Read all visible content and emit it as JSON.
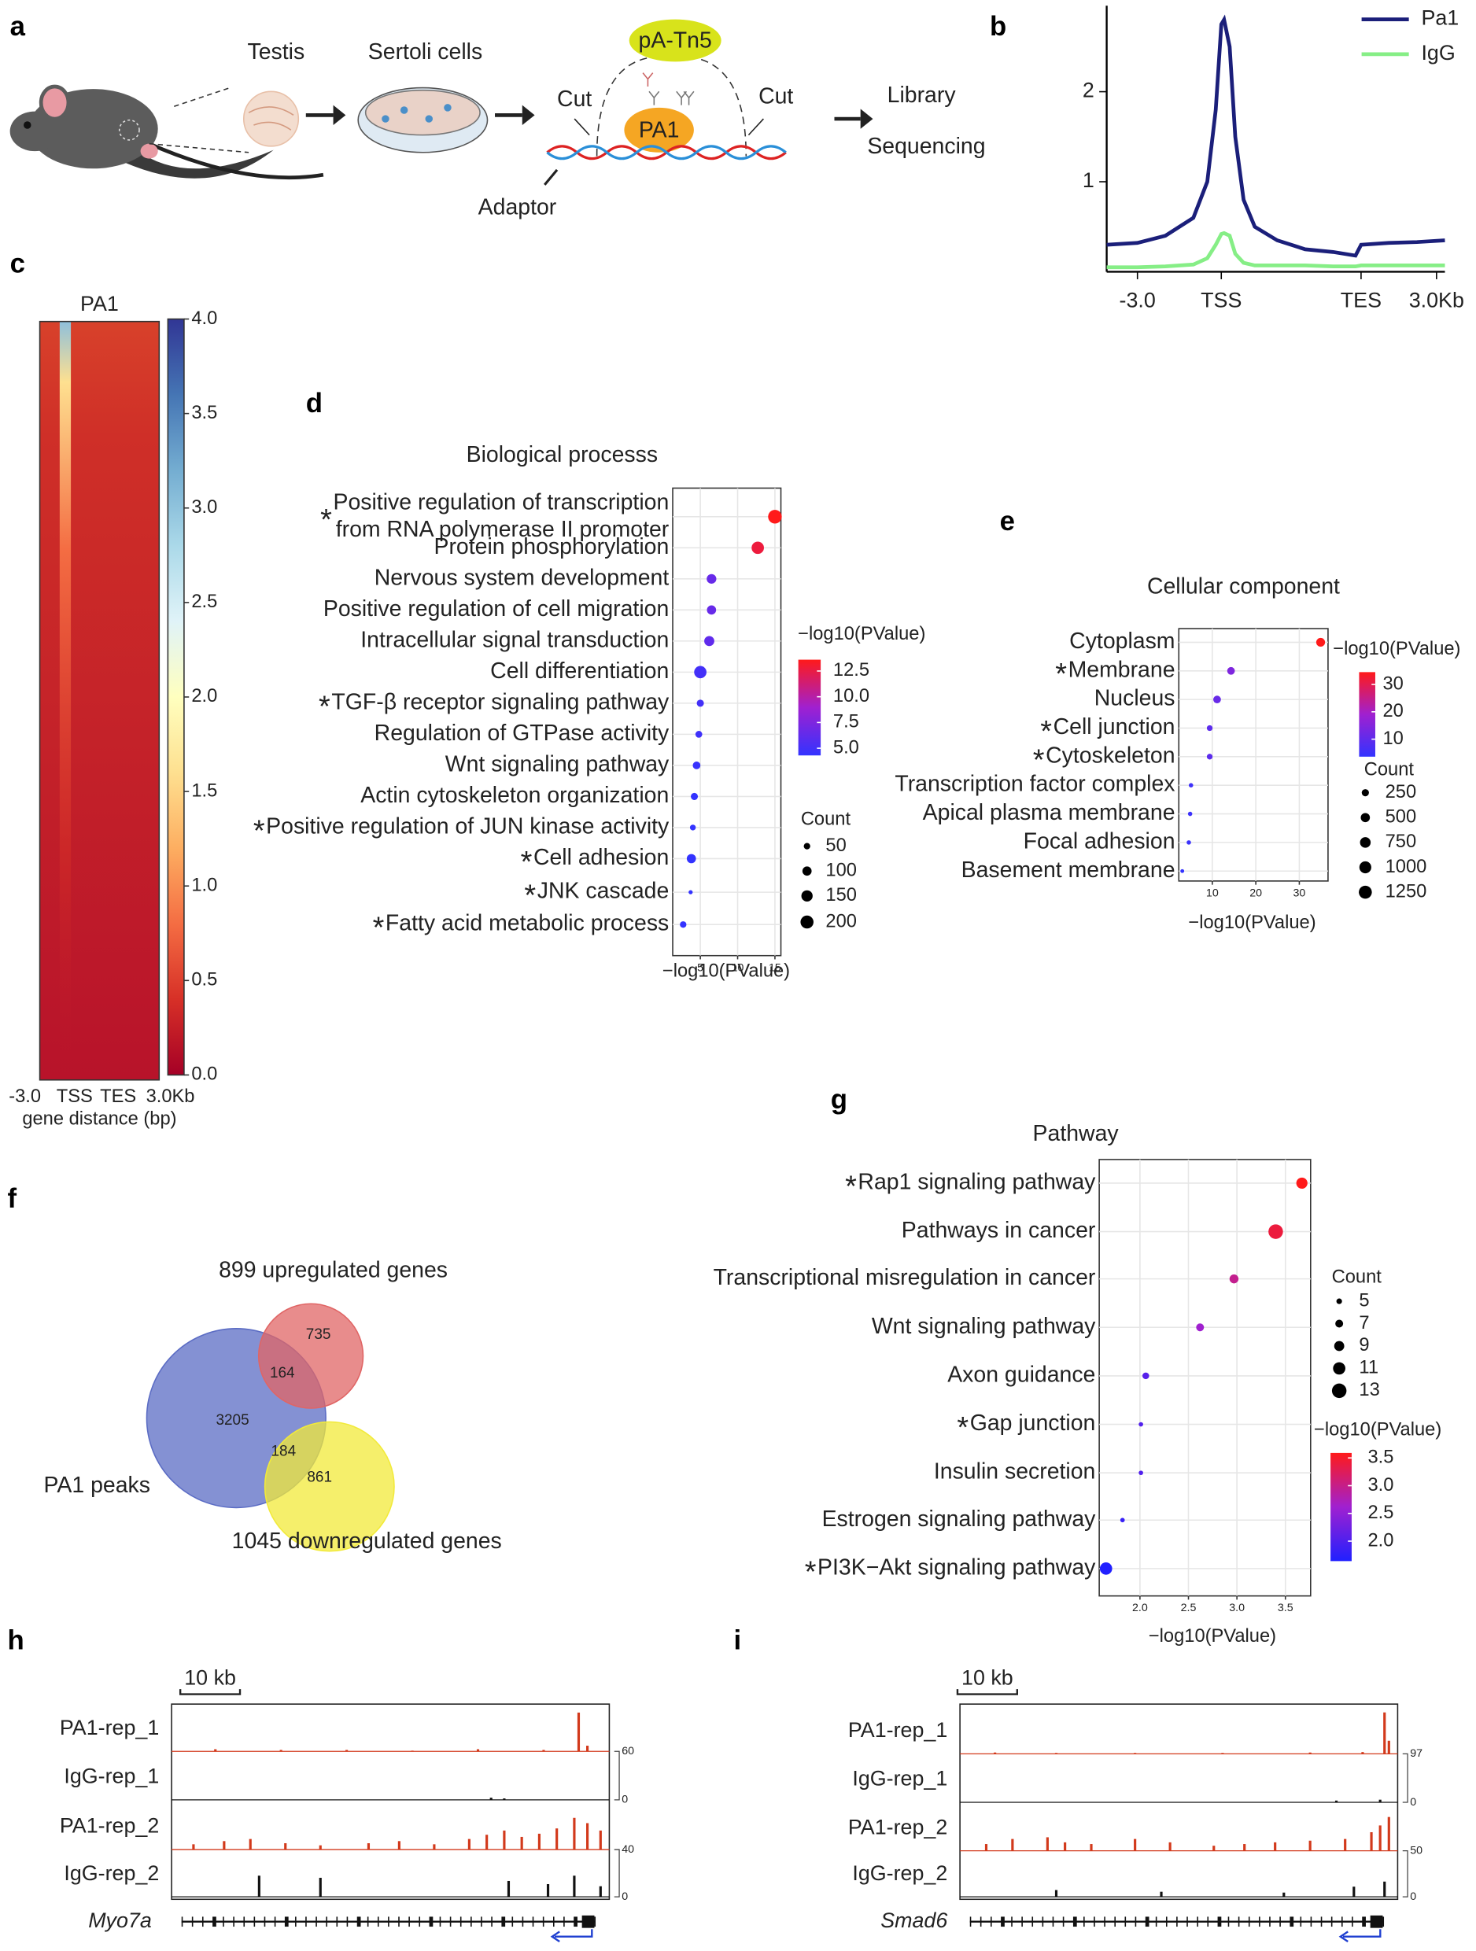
{
  "panel_labels": [
    "a",
    "b",
    "c",
    "d",
    "e",
    "f",
    "g",
    "h",
    "i"
  ],
  "workflow": {
    "testis": "Testis",
    "sertoli": "Sertoli cells",
    "enzyme": "pA-Tn5",
    "cut_left": "Cut",
    "cut_right": "Cut",
    "protein": "PA1",
    "library": "Library",
    "sequencing": "Sequencing",
    "adaptor": "Adaptor"
  },
  "chart_data": [
    {
      "type": "line",
      "x": [
        -11,
        0,
        10,
        20,
        25,
        28,
        30,
        31,
        33,
        35,
        38,
        42,
        50,
        60,
        70,
        78,
        80,
        90,
        100,
        110
      ],
      "series": [
        {
          "name": "Pa1",
          "color": "#1b1f7a",
          "values": [
            0.3,
            0.32,
            0.4,
            0.6,
            1.0,
            1.8,
            2.75,
            2.8,
            2.5,
            1.5,
            0.8,
            0.5,
            0.35,
            0.25,
            0.22,
            0.18,
            0.3,
            0.32,
            0.33,
            0.35
          ]
        },
        {
          "name": "IgG",
          "color": "#86ee86",
          "values": [
            0.05,
            0.05,
            0.06,
            0.08,
            0.15,
            0.3,
            0.42,
            0.43,
            0.4,
            0.2,
            0.1,
            0.07,
            0.07,
            0.07,
            0.06,
            0.06,
            0.07,
            0.07,
            0.07,
            0.07
          ]
        }
      ],
      "xlim": [
        -11,
        110
      ],
      "xticks": [
        {
          "value": 0,
          "label": "-3.0"
        },
        {
          "value": 30,
          "label": "TSS"
        },
        {
          "value": 80,
          "label": "TES"
        },
        {
          "value": 107,
          "label": "3.0Kb"
        }
      ],
      "ylim": [
        0,
        2.9
      ],
      "yticks": [
        1,
        2
      ],
      "legend": "upper right"
    },
    {
      "type": "heatmap",
      "title": "PA1",
      "categories": [
        "-3.0",
        "TSS",
        "TES",
        "3.0Kb"
      ],
      "xlabel": "gene distance (bp)",
      "clim": [
        0,
        4
      ],
      "cticks": [
        {
          "value": 0,
          "label": "0.0"
        },
        0.5,
        {
          "value": 1,
          "label": "1.0"
        },
        1.5,
        {
          "value": 2,
          "label": "2.0"
        },
        2.5,
        {
          "value": 3,
          "label": "3.0"
        },
        3.5,
        {
          "value": 4,
          "label": "4.0"
        }
      ],
      "colors": [
        "#a50026",
        "#d73027",
        "#f46d43",
        "#fdae61",
        "#fee090",
        "#ffffbf",
        "#e0f3f8",
        "#abd9e9",
        "#74add1",
        "#4575b4",
        "#313695"
      ]
    },
    {
      "type": "dot",
      "title": "Biological processs",
      "categories": [
        "Positive regulation of transcription\nfrom RNA polymerase II promoter",
        "Protein phosphorylation",
        "Nervous system development",
        "Positive regulation of cell migration",
        "Intracellular signal transduction",
        "Cell differentiation",
        "TGF-β receptor signaling pathway",
        "Regulation of GTPase activity",
        "Wnt signaling pathway",
        "Actin cytoskeleton organization",
        "Positive regulation of JUN kinase activity",
        "Cell adhesion",
        "JNK cascade",
        "Fatty acid metabolic process"
      ],
      "values": [
        15,
        12.7,
        6.5,
        6.5,
        6.2,
        5,
        5,
        4.8,
        4.5,
        4.2,
        4,
        3.8,
        3.7,
        2.7
      ],
      "sizes": [
        220,
        180,
        110,
        100,
        120,
        180,
        60,
        55,
        70,
        60,
        40,
        100,
        20,
        50
      ],
      "starred": [
        true,
        false,
        false,
        false,
        false,
        false,
        true,
        false,
        false,
        false,
        true,
        true,
        true,
        true
      ],
      "star": "*",
      "xlim": [
        1.3,
        15.8
      ],
      "xticks": [
        5,
        10,
        15
      ],
      "xlabel": "−log10(PValue)",
      "grid": true,
      "color_title": "−log10(PValue)",
      "clim": [
        4.3,
        13.6
      ],
      "cticks": [
        {
          "value": 5,
          "label": "5.0"
        },
        7.5,
        {
          "value": 10,
          "label": "10.0"
        },
        12.5
      ],
      "colors": [
        "#3333ff",
        "#a020d0",
        "#ff1a1a"
      ],
      "size_title": "Count",
      "size_legend": [
        50,
        100,
        150,
        200
      ]
    },
    {
      "type": "dot",
      "title": "Cellular component",
      "categories": [
        "Cytoplasm",
        "Membrane",
        "Nucleus",
        "Cell junction",
        "Cytoskeleton",
        "Transcription factor complex",
        "Apical plasma membrane",
        "Focal adhesion",
        "Basement membrane"
      ],
      "values": [
        34.9,
        14.3,
        11.1,
        9.4,
        9.4,
        5.1,
        4.9,
        4.6,
        3.1
      ],
      "sizes": [
        450,
        300,
        300,
        120,
        120,
        40,
        40,
        40,
        20
      ],
      "starred": [
        false,
        true,
        false,
        true,
        true,
        false,
        false,
        false,
        false
      ],
      "star": "*",
      "xlim": [
        2.3,
        36.6
      ],
      "xticks": [
        10,
        20,
        30
      ],
      "xlabel": "−log10(PValue)",
      "grid": true,
      "color_title": "−log10(PValue)",
      "clim": [
        3.6,
        34.5
      ],
      "cticks": [
        10,
        20,
        30
      ],
      "colors": [
        "#3333ff",
        "#a020d0",
        "#ff1a1a"
      ],
      "size_title": "Count",
      "size_legend": [
        250,
        500,
        750,
        1000,
        1250
      ]
    },
    {
      "type": "venn",
      "sets": [
        {
          "name": "PA1 peaks",
          "color": "#5b6cc4"
        },
        {
          "name": "899 upregulated genes",
          "color": "#e06565"
        },
        {
          "name": "1045 downregulated genes",
          "color": "#f2ea3a"
        }
      ],
      "values": [
        3205,
        164,
        735,
        184,
        861
      ]
    },
    {
      "type": "dot",
      "title": "Pathway",
      "categories": [
        "Rap1 signaling pathway",
        "Pathways in cancer",
        "Transcriptional misregulation in cancer",
        "Wnt signaling pathway",
        "Axon guidance",
        "Gap junction",
        "Insulin secretion",
        "Estrogen signaling pathway",
        "PI3K−Akt signaling pathway"
      ],
      "values": [
        3.67,
        3.4,
        2.97,
        2.62,
        2.06,
        2.01,
        2.01,
        1.82,
        1.65
      ],
      "sizes": [
        10,
        13,
        8,
        7,
        6,
        4,
        4,
        4,
        11
      ],
      "starred": [
        true,
        false,
        false,
        false,
        false,
        true,
        false,
        false,
        true
      ],
      "star": "*",
      "xlim": [
        1.58,
        3.76
      ],
      "xticks": [
        {
          "value": 2,
          "label": "2.0"
        },
        2.5,
        {
          "value": 3,
          "label": "3.0"
        },
        3.5
      ],
      "xlabel": "−log10(PValue)",
      "grid": true,
      "color_title": "−log10(PValue)",
      "clim": [
        1.64,
        3.59
      ],
      "cticks": [
        {
          "value": 2,
          "label": "2.0"
        },
        2.5,
        {
          "value": 3,
          "label": "3.0"
        },
        3.5
      ],
      "colors": [
        "#2020ff",
        "#a020d0",
        "#ff1a1a"
      ],
      "size_title": "Count",
      "size_legend": [
        5,
        7,
        9,
        11,
        13
      ]
    },
    {
      "type": "tracks",
      "scale_label": "10 kb",
      "gene": "Myo7a",
      "scales": [
        {
          "ylim": [
            0,
            60
          ]
        },
        {
          "ylim": [
            0,
            40
          ]
        }
      ],
      "tracks": [
        {
          "name": "PA1-rep_1",
          "color": "#d2391b",
          "scale": 0,
          "x": [
            10,
            25,
            40,
            55,
            70,
            85,
            93,
            95
          ],
          "values": [
            3,
            2,
            2,
            1,
            3,
            2,
            55,
            8
          ]
        },
        {
          "name": "IgG-rep_1",
          "color": "#111111",
          "scale": 0,
          "x": [
            73,
            76
          ],
          "values": [
            3,
            2
          ]
        },
        {
          "name": "PA1-rep_2",
          "color": "#d2391b",
          "scale": 1,
          "x": [
            5,
            12,
            18,
            26,
            34,
            45,
            52,
            60,
            68,
            72,
            76,
            80,
            84,
            88,
            92,
            95,
            98
          ],
          "values": [
            5,
            8,
            10,
            6,
            4,
            6,
            8,
            5,
            10,
            14,
            18,
            12,
            15,
            20,
            30,
            25,
            18
          ]
        },
        {
          "name": "IgG-rep_2",
          "color": "#111111",
          "scale": 1,
          "x": [
            20,
            34,
            77,
            86,
            92,
            98
          ],
          "values": [
            20,
            18,
            15,
            12,
            20,
            10
          ]
        }
      ]
    },
    {
      "type": "tracks",
      "scale_label": "10 kb",
      "gene": "Smad6",
      "scales": [
        {
          "ylim": [
            0,
            97
          ]
        },
        {
          "ylim": [
            0,
            50
          ]
        }
      ],
      "tracks": [
        {
          "name": "PA1-rep_1",
          "color": "#d2391b",
          "scale": 0,
          "x": [
            8,
            22,
            40,
            60,
            80,
            92,
            97,
            98
          ],
          "values": [
            3,
            2,
            2,
            2,
            3,
            4,
            95,
            30
          ]
        },
        {
          "name": "IgG-rep_1",
          "color": "#111111",
          "scale": 0,
          "x": [
            86,
            96
          ],
          "values": [
            4,
            6
          ]
        },
        {
          "name": "PA1-rep_2",
          "color": "#d2391b",
          "scale": 1,
          "x": [
            6,
            12,
            20,
            24,
            30,
            40,
            48,
            58,
            65,
            72,
            80,
            88,
            94,
            96,
            98
          ],
          "values": [
            8,
            14,
            16,
            10,
            8,
            14,
            10,
            6,
            8,
            10,
            12,
            14,
            22,
            30,
            40
          ]
        },
        {
          "name": "IgG-rep_2",
          "color": "#111111",
          "scale": 1,
          "x": [
            22,
            46,
            74,
            90,
            97
          ],
          "values": [
            8,
            6,
            5,
            12,
            18
          ]
        }
      ]
    }
  ]
}
